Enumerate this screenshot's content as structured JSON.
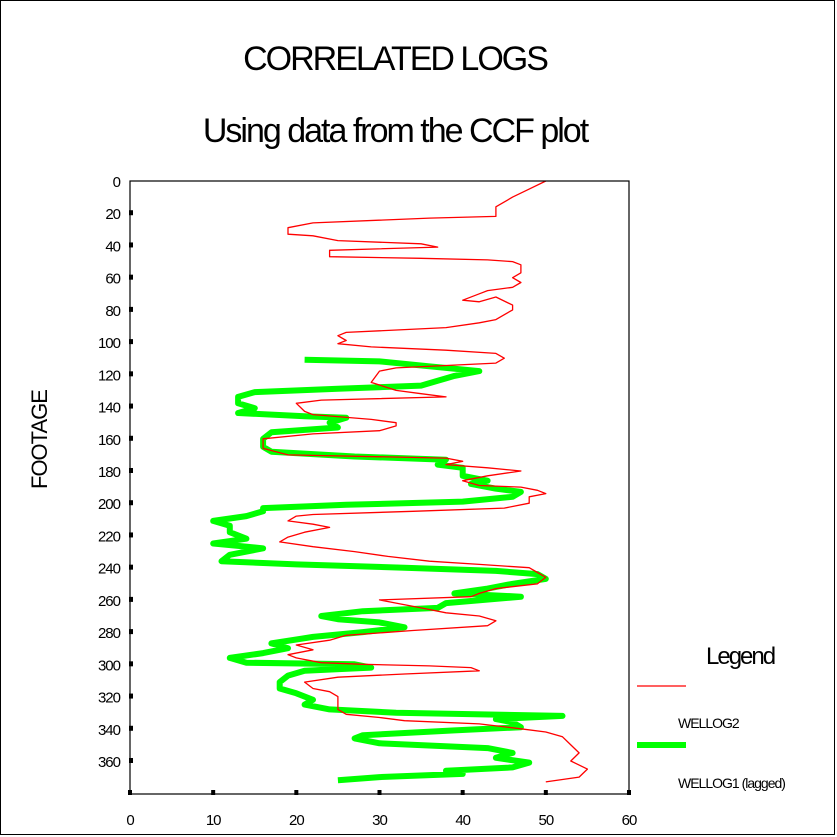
{
  "chart_data": {
    "type": "line",
    "title": "CORRELATED LOGS",
    "subtitle": "Using data from the CCF plot",
    "xlabel": "",
    "ylabel": "FOOTAGE",
    "xlim": [
      0,
      60
    ],
    "ylim": [
      0,
      370
    ],
    "y_inverted": true,
    "grid": false,
    "x_ticks": [
      "0",
      "10",
      "20",
      "30",
      "40",
      "50",
      "60"
    ],
    "y_ticks": [
      "0",
      "20",
      "40",
      "60",
      "80",
      "100",
      "120",
      "140",
      "160",
      "180",
      "200",
      "220",
      "240",
      "260",
      "280",
      "300",
      "320",
      "340",
      "360"
    ],
    "legend": {
      "title": "Legend",
      "placement": "right"
    },
    "series": [
      {
        "name": "WELLOG2",
        "color": "#ff0000",
        "line": "thin",
        "points": [
          [
            50,
            0
          ],
          [
            48,
            5
          ],
          [
            46,
            10
          ],
          [
            44,
            16
          ],
          [
            44,
            22
          ],
          [
            36,
            23
          ],
          [
            22,
            26
          ],
          [
            19,
            29
          ],
          [
            19,
            33
          ],
          [
            22,
            34
          ],
          [
            25,
            37
          ],
          [
            35,
            39
          ],
          [
            37,
            41
          ],
          [
            24,
            43
          ],
          [
            24,
            47
          ],
          [
            35,
            48
          ],
          [
            43,
            49
          ],
          [
            46,
            50
          ],
          [
            47,
            52
          ],
          [
            47,
            57
          ],
          [
            46,
            60
          ],
          [
            47,
            63
          ],
          [
            46,
            66
          ],
          [
            43,
            68
          ],
          [
            42,
            70
          ],
          [
            40,
            74
          ],
          [
            42,
            75
          ],
          [
            44,
            72
          ],
          [
            46,
            77
          ],
          [
            46,
            80
          ],
          [
            45,
            83
          ],
          [
            44,
            86
          ],
          [
            42,
            88
          ],
          [
            38,
            91
          ],
          [
            30,
            93
          ],
          [
            26,
            94
          ],
          [
            25,
            96
          ],
          [
            26,
            99
          ],
          [
            25,
            101
          ],
          [
            29,
            103
          ],
          [
            38,
            105
          ],
          [
            44,
            107
          ],
          [
            45,
            110
          ],
          [
            44,
            113
          ],
          [
            32,
            116
          ],
          [
            30,
            118
          ],
          [
            29,
            125
          ],
          [
            32,
            130
          ],
          [
            35,
            132
          ],
          [
            38,
            134
          ],
          [
            23,
            136
          ],
          [
            20,
            138
          ],
          [
            21,
            143
          ],
          [
            22,
            145
          ],
          [
            29,
            148
          ],
          [
            32,
            150
          ],
          [
            32,
            152
          ],
          [
            30,
            155
          ],
          [
            22,
            157
          ],
          [
            16,
            160
          ],
          [
            16,
            166
          ],
          [
            19,
            170
          ],
          [
            38,
            172
          ],
          [
            40,
            174
          ],
          [
            38,
            176
          ],
          [
            43,
            178
          ],
          [
            47,
            180
          ],
          [
            43,
            183
          ],
          [
            40,
            186
          ],
          [
            42,
            189
          ],
          [
            47,
            190
          ],
          [
            49,
            192
          ],
          [
            50,
            194
          ],
          [
            48,
            196
          ],
          [
            48,
            200
          ],
          [
            45,
            203
          ],
          [
            34,
            205
          ],
          [
            22,
            207
          ],
          [
            20,
            208
          ],
          [
            19,
            211
          ],
          [
            22,
            213
          ],
          [
            24,
            215
          ],
          [
            21,
            218
          ],
          [
            19,
            221
          ],
          [
            18,
            224
          ],
          [
            22,
            227
          ],
          [
            27,
            230
          ],
          [
            31,
            233
          ],
          [
            36,
            236
          ],
          [
            42,
            238
          ],
          [
            48,
            240
          ],
          [
            49,
            243
          ],
          [
            50,
            246
          ],
          [
            49,
            250
          ],
          [
            44,
            253
          ],
          [
            42,
            256
          ],
          [
            41,
            258
          ],
          [
            30,
            260
          ],
          [
            32,
            262
          ],
          [
            35,
            265
          ],
          [
            38,
            268
          ],
          [
            42,
            270
          ],
          [
            44,
            273
          ],
          [
            43,
            276
          ],
          [
            34,
            279
          ],
          [
            26,
            282
          ],
          [
            24,
            285
          ],
          [
            20,
            288
          ],
          [
            22,
            291
          ],
          [
            19,
            294
          ],
          [
            20,
            296
          ],
          [
            21,
            297
          ],
          [
            23,
            299
          ],
          [
            28,
            300
          ],
          [
            36,
            301
          ],
          [
            41,
            302
          ],
          [
            42,
            304
          ],
          [
            33,
            306
          ],
          [
            25,
            308
          ],
          [
            21,
            311
          ],
          [
            22,
            315
          ],
          [
            24,
            317
          ],
          [
            25,
            320
          ],
          [
            25,
            325
          ],
          [
            25,
            328
          ],
          [
            26,
            331
          ],
          [
            30,
            333
          ],
          [
            33,
            335
          ],
          [
            42,
            337
          ],
          [
            47,
            340
          ],
          [
            50,
            342
          ],
          [
            52,
            345
          ],
          [
            53,
            350
          ],
          [
            54,
            355
          ],
          [
            53,
            360
          ],
          [
            55,
            365
          ],
          [
            54,
            370
          ],
          [
            50,
            373
          ]
        ]
      },
      {
        "name": "WELLOG1 (lagged)",
        "color": "#00ff00",
        "line": "thick",
        "points": [
          [
            21,
            111
          ],
          [
            30,
            112
          ],
          [
            36,
            115
          ],
          [
            42,
            118
          ],
          [
            39,
            121
          ],
          [
            37,
            124
          ],
          [
            35,
            127
          ],
          [
            25,
            129
          ],
          [
            15,
            131
          ],
          [
            13,
            134
          ],
          [
            13,
            138
          ],
          [
            15,
            141
          ],
          [
            13,
            144
          ],
          [
            21,
            146
          ],
          [
            26,
            147
          ],
          [
            24,
            150
          ],
          [
            25,
            153
          ],
          [
            17,
            156
          ],
          [
            16,
            160
          ],
          [
            16,
            165
          ],
          [
            17,
            168
          ],
          [
            27,
            171
          ],
          [
            38,
            173
          ],
          [
            37,
            176
          ],
          [
            40,
            178
          ],
          [
            40,
            183
          ],
          [
            43,
            186
          ],
          [
            41,
            188
          ],
          [
            44,
            191
          ],
          [
            47,
            193
          ],
          [
            46,
            196
          ],
          [
            40,
            199
          ],
          [
            26,
            201
          ],
          [
            16,
            203
          ],
          [
            16,
            205
          ],
          [
            14,
            208
          ],
          [
            10,
            211
          ],
          [
            12,
            214
          ],
          [
            12,
            218
          ],
          [
            14,
            222
          ],
          [
            10,
            225
          ],
          [
            16,
            228
          ],
          [
            12,
            232
          ],
          [
            11,
            236
          ],
          [
            20,
            238
          ],
          [
            33,
            240
          ],
          [
            44,
            242
          ],
          [
            49,
            244
          ],
          [
            50,
            247
          ],
          [
            46,
            250
          ],
          [
            43,
            253
          ],
          [
            39,
            256
          ],
          [
            47,
            258
          ],
          [
            38,
            262
          ],
          [
            37,
            265
          ],
          [
            28,
            267
          ],
          [
            23,
            270
          ],
          [
            25,
            272
          ],
          [
            30,
            274
          ],
          [
            33,
            277
          ],
          [
            28,
            280
          ],
          [
            22,
            283
          ],
          [
            17,
            287
          ],
          [
            19,
            290
          ],
          [
            16,
            293
          ],
          [
            12,
            296
          ],
          [
            14,
            299
          ],
          [
            27,
            300
          ],
          [
            29,
            302
          ],
          [
            21,
            304
          ],
          [
            19,
            307
          ],
          [
            18,
            311
          ],
          [
            18,
            315
          ],
          [
            20,
            318
          ],
          [
            22,
            322
          ],
          [
            21,
            325
          ],
          [
            24,
            328
          ],
          [
            32,
            330
          ],
          [
            52,
            332
          ],
          [
            44,
            334
          ],
          [
            46,
            336
          ],
          [
            47,
            339
          ],
          [
            39,
            341
          ],
          [
            28,
            344
          ],
          [
            27,
            346
          ],
          [
            30,
            349
          ],
          [
            43,
            352
          ],
          [
            46,
            355
          ],
          [
            44,
            358
          ],
          [
            48,
            361
          ],
          [
            46,
            364
          ],
          [
            38,
            366
          ],
          [
            40,
            368
          ],
          [
            30,
            370
          ],
          [
            25,
            372
          ]
        ]
      }
    ]
  }
}
